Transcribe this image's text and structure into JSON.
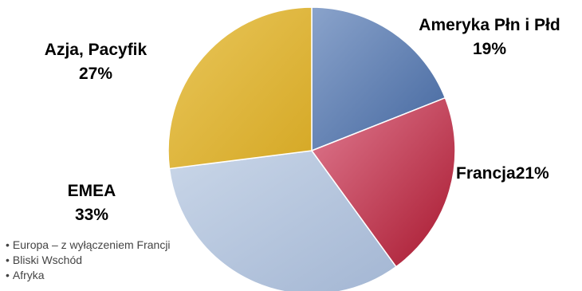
{
  "chart_data": {
    "type": "pie",
    "slices": [
      {
        "label": "Ameryka Płn i Płd",
        "value": 19,
        "value_text": "19%",
        "color": "#5b7db3"
      },
      {
        "label": "Francja",
        "value": 21,
        "value_text": "21%",
        "color": "#c23a55"
      },
      {
        "label": "EMEA",
        "value": 33,
        "value_text": "33%",
        "color": "#b6c6dd"
      },
      {
        "label": "Azja, Pacyfik",
        "value": 27,
        "value_text": "27%",
        "color": "#e2bb3c"
      }
    ],
    "annotation": {
      "items": [
        "Europa – z wyłączeniem Francji",
        "Bliski Wschód",
        "Afryka"
      ]
    }
  }
}
